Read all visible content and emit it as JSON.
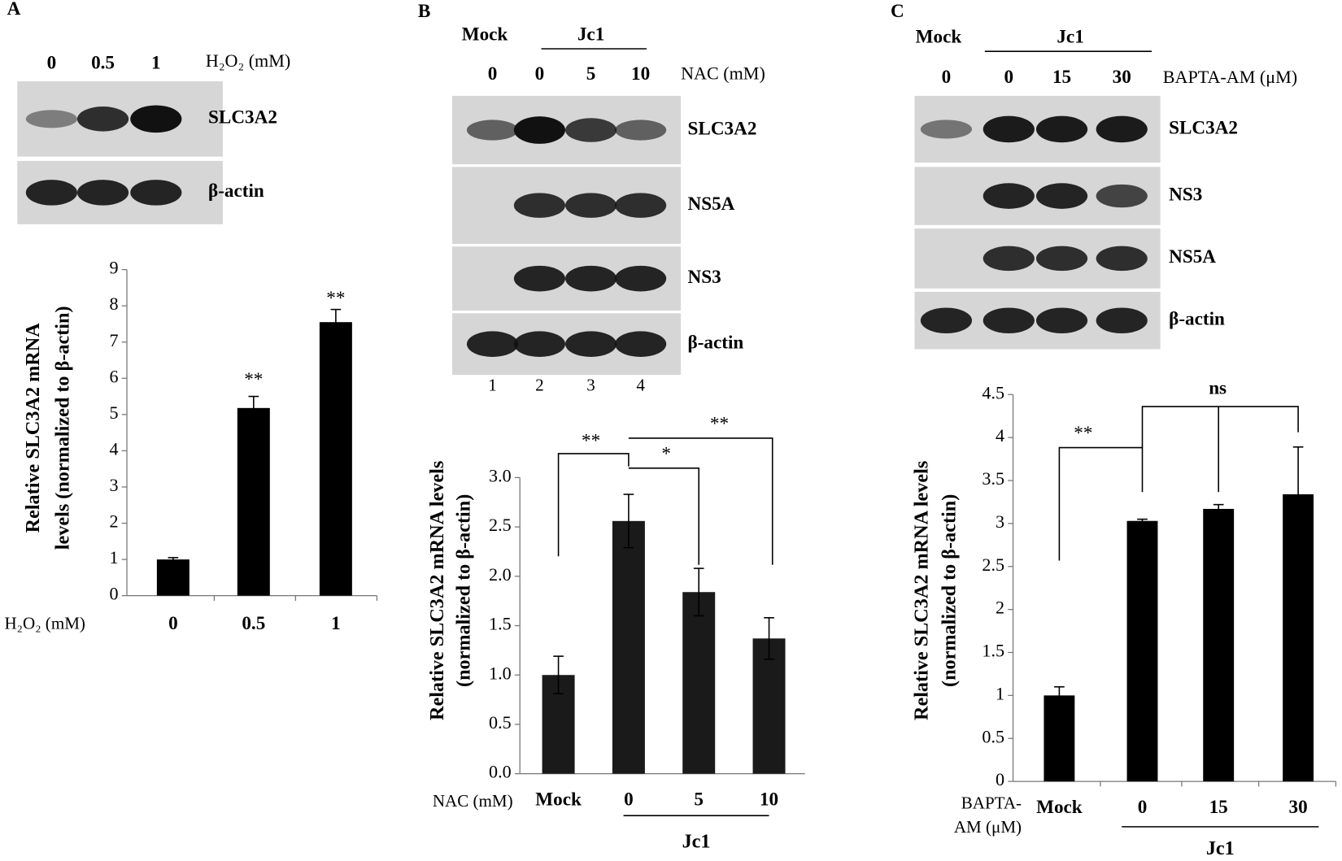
{
  "chart_data": [
    {
      "type": "bar",
      "categories": [
        "0",
        "0.5",
        "1"
      ],
      "values": [
        1.0,
        5.18,
        7.55
      ],
      "errors": [
        0.05,
        0.32,
        0.35
      ],
      "color": "#000000",
      "ylim": [
        0,
        9
      ],
      "yticks": [
        0,
        1,
        2,
        3,
        4,
        5,
        6,
        7,
        8,
        9
      ],
      "ylabel": [
        "Relative SLC3A2  mRNA",
        "levels (normalized to β-actin)"
      ],
      "xlabel": "H₂O₂ (mM)",
      "annotations": [
        "**",
        "**"
      ]
    },
    {
      "type": "bar",
      "categories": [
        "Mock",
        "0",
        "5",
        "10"
      ],
      "values": [
        1.0,
        2.56,
        1.84,
        1.37
      ],
      "errors": [
        0.19,
        0.27,
        0.24,
        0.21
      ],
      "color": "#1a1a1a",
      "ylim": [
        0,
        3
      ],
      "yticks": [
        {
          "value": 0,
          "label": "0.0"
        },
        0.5,
        {
          "value": 1,
          "label": "1.0"
        },
        1.5,
        {
          "value": 2,
          "label": "2.0"
        },
        2.5,
        {
          "value": 3,
          "label": "3.0"
        }
      ],
      "ylabel": [
        "Relative SLC3A2 mRNA levels",
        "(normalized to β-actin)"
      ],
      "xlabel": "NAC (mM)",
      "group_label": "Jc1",
      "annotations": [
        "**",
        "*",
        "**"
      ]
    },
    {
      "type": "bar",
      "categories": [
        "Mock",
        "0",
        "15",
        "30"
      ],
      "values": [
        1.0,
        3.03,
        3.17,
        3.34
      ],
      "errors": [
        0.1,
        0.02,
        0.05,
        0.55
      ],
      "color": "#000000",
      "ylim": [
        0,
        4.5
      ],
      "yticks": [
        0,
        0.5,
        1,
        1.5,
        2,
        2.5,
        3,
        3.5,
        4,
        4.5
      ],
      "ylabel": [
        "Relative SLC3A2 mRNA levels",
        "(normalized to β-actin)"
      ],
      "xlabel": [
        "BAPTA-",
        "AM (μM)"
      ],
      "group_label": "Jc1",
      "annotations": [
        "**",
        "ns"
      ]
    }
  ],
  "blots": [
    {
      "panel": "A",
      "lanes": [
        "0",
        "0.5",
        "1"
      ],
      "treatment": "H₂O₂ (mM)",
      "rows": [
        "SLC3A2",
        "β-actin"
      ]
    },
    {
      "panel": "B",
      "mock": "Mock",
      "group": "Jc1",
      "lanes": [
        "0",
        "0",
        "5",
        "10"
      ],
      "treatment": "NAC (mM)",
      "rows": [
        "SLC3A2",
        "NS5A",
        "NS3",
        "β-actin"
      ],
      "lane_numbers": [
        "1",
        "2",
        "3",
        "4"
      ]
    },
    {
      "panel": "C",
      "mock": "Mock",
      "group": "Jc1",
      "lanes": [
        "0",
        "0",
        "15",
        "30"
      ],
      "treatment": "BAPTA-AM (μM)",
      "rows": [
        "SLC3A2",
        "NS3",
        "NS5A",
        "β-actin"
      ]
    }
  ]
}
